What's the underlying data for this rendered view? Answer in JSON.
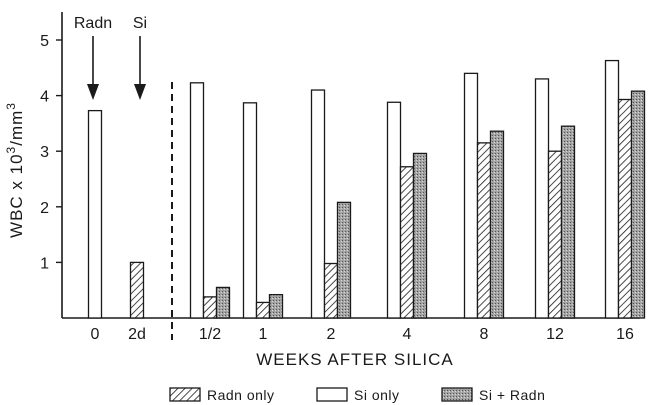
{
  "chart_data": {
    "type": "bar",
    "xlabel": "WEEKS AFTER SILICA",
    "ylabel_parts": [
      "WBC x 10",
      "3",
      "/mm",
      "3"
    ],
    "ylim": [
      0,
      5
    ],
    "yticks": [
      "1",
      "2",
      "3",
      "4",
      "5"
    ],
    "categories": [
      "0",
      "2d",
      "1/2",
      "1",
      "2",
      "4",
      "8",
      "12",
      "16"
    ],
    "series": [
      {
        "name": "Radn only",
        "pattern": "hatch",
        "values": [
          null,
          1.0,
          0.38,
          0.28,
          0.98,
          2.72,
          3.15,
          3.0,
          3.93
        ]
      },
      {
        "name": "Si only",
        "pattern": "open",
        "values": [
          3.73,
          null,
          4.23,
          3.87,
          4.1,
          3.88,
          4.4,
          4.3,
          4.63
        ]
      },
      {
        "name": "Si + Radn",
        "pattern": "stipple",
        "values": [
          null,
          null,
          0.55,
          0.42,
          2.08,
          2.96,
          3.36,
          3.45,
          4.08
        ]
      }
    ],
    "annotations": [
      "Radn",
      "Si"
    ],
    "legend_position": "bottom",
    "grid": false,
    "colors": {
      "ink": "#1a1a1a",
      "open_fill": "#ffffff",
      "stipple_fill": "#9a9a9a"
    }
  }
}
